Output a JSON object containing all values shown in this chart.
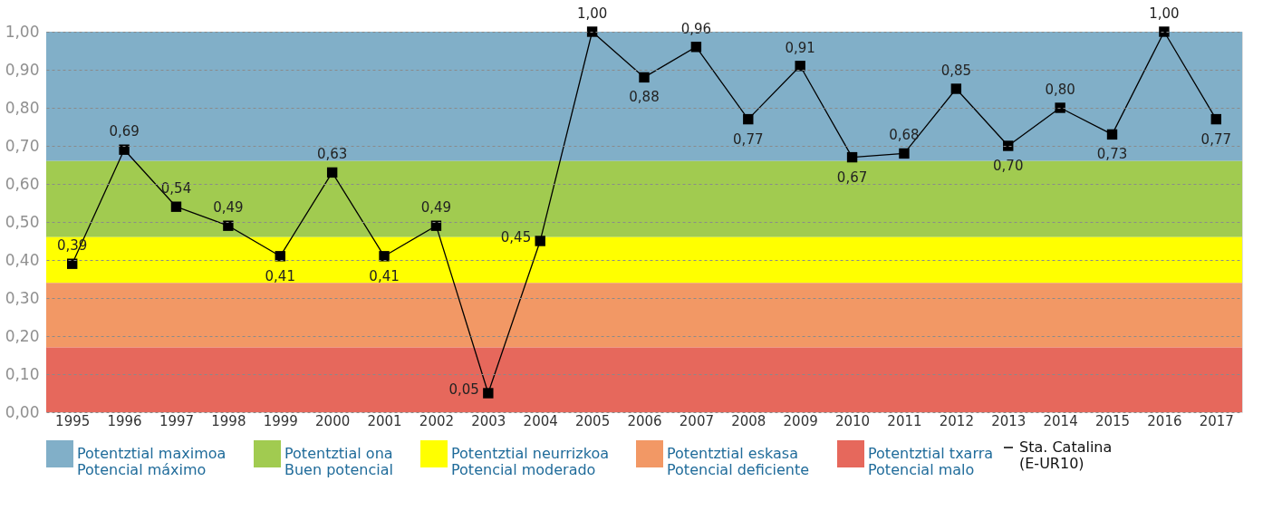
{
  "chart_data": {
    "type": "line",
    "categories": [
      "1995",
      "1996",
      "1997",
      "1998",
      "1999",
      "2000",
      "2001",
      "2002",
      "2003",
      "2004",
      "2005",
      "2006",
      "2007",
      "2008",
      "2009",
      "2010",
      "2011",
      "2012",
      "2013",
      "2014",
      "2015",
      "2016",
      "2017"
    ],
    "series": [
      {
        "name": "Sta. Catalina (E-UR10)",
        "color": "#000000",
        "values": [
          0.39,
          0.69,
          0.54,
          0.49,
          0.41,
          0.63,
          0.41,
          0.49,
          0.05,
          0.45,
          1.0,
          0.88,
          0.96,
          0.77,
          0.91,
          0.67,
          0.68,
          0.85,
          0.7,
          0.8,
          0.73,
          1.0,
          0.77
        ]
      }
    ],
    "ylim": [
      0,
      1
    ],
    "yticks": [
      {
        "value": 0,
        "label": "0,00"
      },
      {
        "value": 0.1,
        "label": "0,10"
      },
      {
        "value": 0.2,
        "label": "0,20"
      },
      {
        "value": 0.3,
        "label": "0,30"
      },
      {
        "value": 0.4,
        "label": "0,40"
      },
      {
        "value": 0.5,
        "label": "0,50"
      },
      {
        "value": 0.6,
        "label": "0,60"
      },
      {
        "value": 0.7,
        "label": "0,70"
      },
      {
        "value": 0.8,
        "label": "0,80"
      },
      {
        "value": 0.9,
        "label": "0,90"
      },
      {
        "value": 1,
        "label": "1,00"
      }
    ],
    "bands": [
      {
        "axis": "y",
        "from": 0.66,
        "to": 1.0,
        "label": "Potentztial maximoa\nPotencial máximo",
        "color": "#81afc8"
      },
      {
        "axis": "y",
        "from": 0.46,
        "to": 0.66,
        "label": "Potentztial ona\nBuen potencial",
        "color": "#a1cb50"
      },
      {
        "axis": "y",
        "from": 0.34,
        "to": 0.46,
        "label": "Potentztial neurrizkoa\nPotencial moderado",
        "color": "#ffff00"
      },
      {
        "axis": "y",
        "from": 0.17,
        "to": 0.34,
        "label": "Potentztial eskasa\nPotencial deficiente",
        "color": "#f29865"
      },
      {
        "axis": "y",
        "from": 0.0,
        "to": 0.17,
        "label": "Potentztial txarra\nPotencial malo",
        "color": "#e6685c"
      }
    ],
    "value_labels": [
      "0,39",
      "0,69",
      "0,54",
      "0,49",
      "0,41",
      "0,63",
      "0,41",
      "0,49",
      "0,05",
      "0,45",
      "1,00",
      "0,88",
      "0,96",
      "0,77",
      "0,91",
      "0,67",
      "0,68",
      "0,85",
      "0,70",
      "0,80",
      "0,73",
      "1,00",
      "0,77"
    ],
    "grid": "y",
    "legend": "bottom",
    "marker": "square",
    "line_style": "solid"
  }
}
